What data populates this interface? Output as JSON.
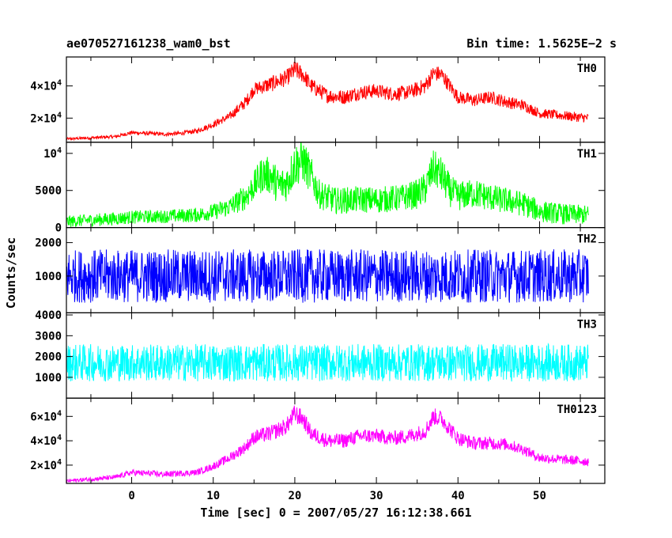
{
  "title_left": "ae070527161238_wam0_bst",
  "title_right": "Bin time: 1.5625E−2 s",
  "xlabel": "Time [sec] 0 = 2007/05/27 16:12:38.661",
  "ylabel": "Counts/sec",
  "colors": {
    "TH0": "#ff0000",
    "TH1": "#00ff00",
    "TH2": "#0000ff",
    "TH3": "#00ffff",
    "TH0123": "#ff00ff"
  },
  "chart_data": {
    "type": "line",
    "xlim": [
      -8,
      58
    ],
    "x_ticks": [
      0,
      10,
      20,
      30,
      40,
      50
    ],
    "x_tick_labels": [
      "0",
      "10",
      "20",
      "30",
      "40",
      "50"
    ],
    "x_range": [
      -8,
      56
    ],
    "panels": [
      {
        "name": "TH0",
        "ylim": [
          5000,
          58000
        ],
        "ticks": [
          {
            "value": 20000,
            "base": "2×10",
            "exp": "4"
          },
          {
            "value": 40000,
            "base": "4×10",
            "exp": "4"
          }
        ],
        "x": [
          -8,
          -2,
          0,
          4,
          6,
          8,
          10,
          12,
          14,
          15,
          17,
          19,
          20,
          21,
          22,
          24,
          26,
          28,
          30,
          32,
          34,
          36,
          37,
          38,
          39,
          40,
          42,
          44,
          46,
          48,
          50,
          52,
          54,
          56
        ],
        "y": [
          7000,
          8500,
          11000,
          10000,
          10500,
          12000,
          16000,
          21000,
          30000,
          38000,
          41000,
          45000,
          50000,
          47000,
          40000,
          34000,
          33000,
          36000,
          37000,
          35000,
          36000,
          40000,
          48000,
          47000,
          40000,
          33000,
          31000,
          33000,
          30000,
          28000,
          23000,
          22000,
          21000,
          20000
        ],
        "noise": [
          800,
          1000,
          1200,
          1200,
          1200,
          1500,
          2000,
          2500,
          4000,
          4000,
          5000,
          5000,
          6000,
          5000,
          5000,
          4500,
          4500,
          4500,
          4500,
          4500,
          4500,
          5000,
          5000,
          5000,
          4500,
          4000,
          4000,
          4000,
          4000,
          3500,
          3000,
          3000,
          3000,
          3000
        ]
      },
      {
        "name": "TH1",
        "ylim": [
          0,
          11500
        ],
        "ticks": [
          {
            "value": 0,
            "label": "0"
          },
          {
            "value": 5000,
            "label": "5000"
          },
          {
            "value": 10000,
            "base": "10",
            "exp": "4"
          }
        ],
        "x": [
          -8,
          -2,
          0,
          4,
          8,
          10,
          12,
          14,
          15,
          16,
          17,
          18,
          19,
          20,
          21,
          22,
          23,
          25,
          28,
          30,
          33,
          35,
          36,
          37,
          38,
          39,
          40,
          42,
          45,
          48,
          50,
          53,
          56
        ],
        "y": [
          800,
          1200,
          1400,
          1500,
          1700,
          2100,
          2800,
          4200,
          5600,
          7200,
          7000,
          5600,
          6000,
          8500,
          9000,
          7000,
          4500,
          3600,
          3800,
          3700,
          4000,
          4500,
          5300,
          8000,
          7000,
          5000,
          4200,
          4600,
          3800,
          3200,
          2200,
          1800,
          1700
        ],
        "noise": [
          800,
          900,
          900,
          900,
          1000,
          1100,
          1300,
          1800,
          2000,
          2500,
          2500,
          2500,
          2500,
          3000,
          3000,
          2500,
          2000,
          1800,
          1800,
          1800,
          1800,
          2000,
          2200,
          2500,
          2500,
          2200,
          2000,
          2000,
          1800,
          1700,
          1500,
          1400,
          1300
        ]
      },
      {
        "name": "TH2",
        "ylim": [
          -100,
          2450
        ],
        "ticks": [
          {
            "value": 1000,
            "label": "1000"
          },
          {
            "value": 2000,
            "label": "2000"
          }
        ],
        "x": [
          -8,
          56
        ],
        "y": [
          1000,
          1000
        ],
        "noise": [
          800,
          800
        ]
      },
      {
        "name": "TH3",
        "ylim": [
          0,
          4100
        ],
        "ticks": [
          {
            "value": 1000,
            "label": "1000"
          },
          {
            "value": 2000,
            "label": "2000"
          },
          {
            "value": 3000,
            "label": "3000"
          },
          {
            "value": 4000,
            "label": "4000"
          }
        ],
        "x": [
          -8,
          56
        ],
        "y": [
          1700,
          1700
        ],
        "noise": [
          900,
          900
        ]
      },
      {
        "name": "TH0123",
        "ylim": [
          5000,
          75000
        ],
        "ticks": [
          {
            "value": 20000,
            "base": "2×10",
            "exp": "4"
          },
          {
            "value": 40000,
            "base": "4×10",
            "exp": "4"
          },
          {
            "value": 60000,
            "base": "6×10",
            "exp": "4"
          }
        ],
        "x": [
          -8,
          -2,
          0,
          4,
          8,
          10,
          12,
          14,
          15,
          17,
          19,
          20,
          21,
          22,
          24,
          26,
          28,
          30,
          32,
          34,
          36,
          37,
          38,
          39,
          40,
          42,
          44,
          46,
          48,
          50,
          52,
          54,
          56
        ],
        "y": [
          7000,
          10000,
          14000,
          12500,
          14000,
          19000,
          26000,
          35000,
          43000,
          46000,
          52000,
          62000,
          58000,
          46000,
          40000,
          40000,
          44000,
          44000,
          42000,
          44000,
          48000,
          60000,
          58000,
          50000,
          42000,
          38000,
          38000,
          37000,
          33000,
          26000,
          25000,
          24000,
          23000
        ],
        "noise": [
          1500,
          2000,
          2500,
          2500,
          2500,
          3000,
          4000,
          5000,
          6000,
          6500,
          7000,
          8000,
          7000,
          6500,
          6000,
          6000,
          6000,
          6000,
          6000,
          6000,
          6500,
          7000,
          7000,
          6500,
          6000,
          5500,
          5500,
          5000,
          4500,
          4000,
          4000,
          4000,
          4000
        ]
      }
    ]
  }
}
